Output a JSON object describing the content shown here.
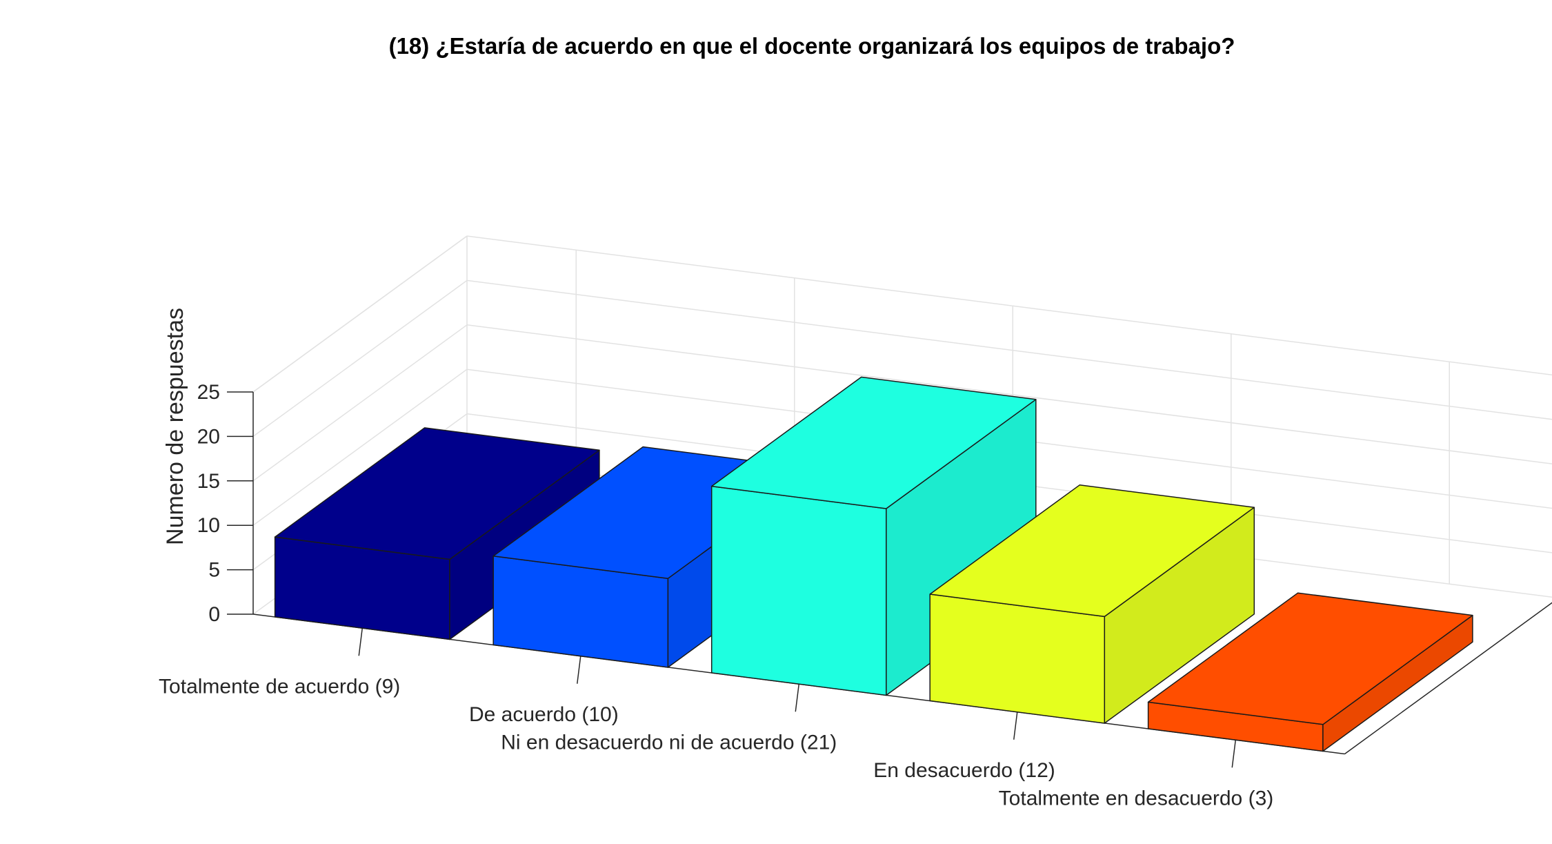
{
  "chart_data": {
    "type": "bar",
    "title": "(18) ¿Estaría de acuerdo en que el docente organizará los equipos de trabajo?",
    "xlabel": "",
    "ylabel": "Numero de respuestas",
    "categories": [
      "Totalmente de acuerdo (9)",
      "De acuerdo (10)",
      "Ni en desacuerdo ni de acuerdo (21)",
      "En desacuerdo (12)",
      "Totalmente en desacuerdo (3)"
    ],
    "values": [
      9,
      10,
      21,
      12,
      3
    ],
    "ylim": [
      0,
      25
    ],
    "yticks": [
      0,
      5,
      10,
      15,
      20,
      25
    ],
    "colors": [
      "#00008B",
      "#0050FF",
      "#1EFFE0",
      "#E4FF1E",
      "#FF4E00"
    ],
    "grid": true,
    "view": "3d"
  }
}
